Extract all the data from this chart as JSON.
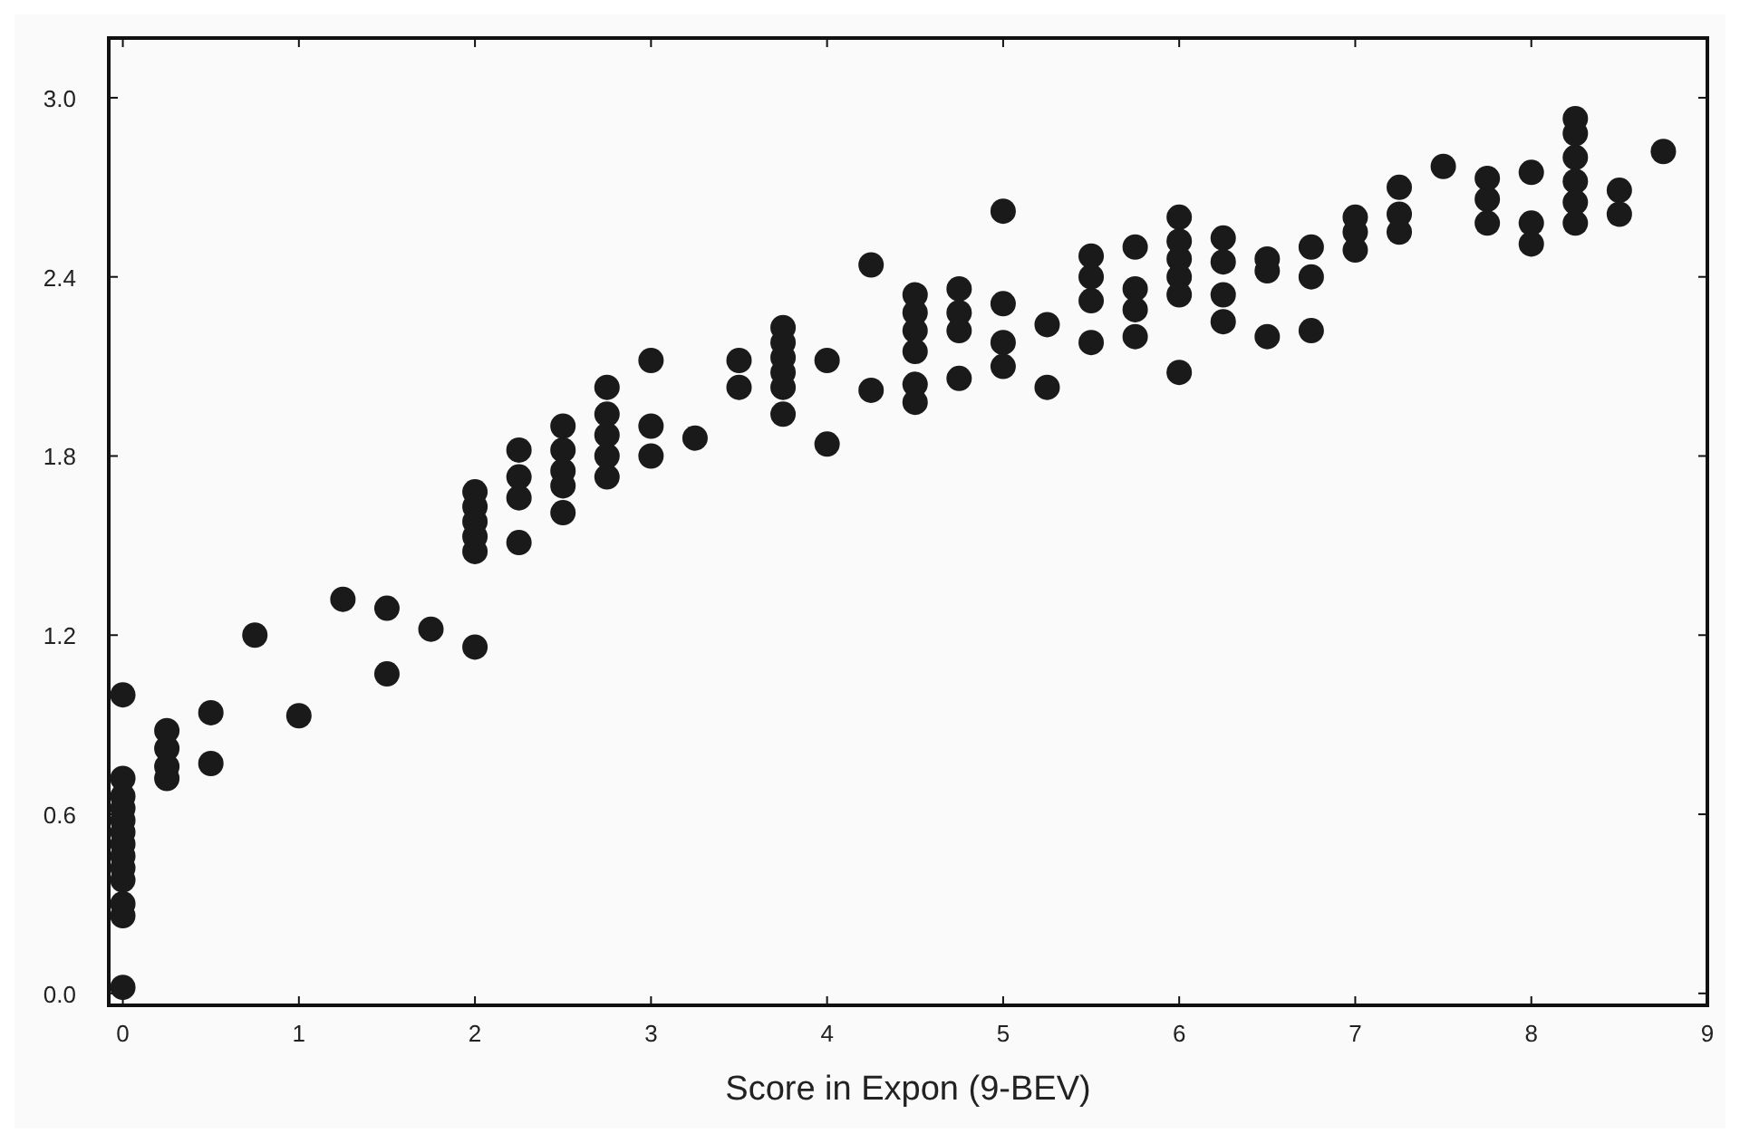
{
  "chart_data": {
    "type": "scatter",
    "xlabel": "Score in Expon (9-BEV)",
    "xlim": [
      -0.08,
      9
    ],
    "ylim": [
      -0.04,
      3.2
    ],
    "xticks": [
      0,
      1,
      2,
      3,
      4,
      5,
      6,
      7,
      8,
      9
    ],
    "yticks": [
      {
        "value": 0,
        "label": "0.0"
      },
      {
        "value": 0.6,
        "label": "0.6"
      },
      {
        "value": 1.2,
        "label": "1.2"
      },
      {
        "value": 1.8,
        "label": "1.8"
      },
      {
        "value": 2.4,
        "label": "2.4"
      },
      {
        "value": 3.0,
        "label": "3.0"
      }
    ],
    "grid": false,
    "marker": "circle",
    "series": [
      {
        "color": "#1a1a1a",
        "x": [
          0,
          0,
          0,
          0,
          0,
          0,
          0,
          0,
          0,
          0,
          0,
          0,
          0,
          0.25,
          0.25,
          0.25,
          0.25,
          0.5,
          0.5,
          0.75,
          1,
          1.25,
          1.5,
          1.5,
          1.75,
          2,
          2,
          2,
          2,
          2,
          2,
          2.25,
          2.25,
          2.25,
          2.25,
          2.5,
          2.5,
          2.5,
          2.5,
          2.5,
          2.75,
          2.75,
          2.75,
          2.75,
          2.75,
          3,
          3,
          3,
          3.25,
          3.5,
          3.5,
          3.75,
          3.75,
          3.75,
          3.75,
          3.75,
          3.75,
          4,
          4,
          4.25,
          4.25,
          4.5,
          4.5,
          4.5,
          4.5,
          4.5,
          4.5,
          4.75,
          4.75,
          4.75,
          4.75,
          5,
          5,
          5,
          5,
          5.25,
          5.25,
          5.5,
          5.5,
          5.5,
          5.5,
          5.75,
          5.75,
          5.75,
          5.75,
          6,
          6,
          6,
          6,
          6,
          6,
          6.25,
          6.25,
          6.25,
          6.25,
          6.5,
          6.5,
          6.5,
          6.75,
          6.75,
          6.75,
          7,
          7,
          7,
          7.25,
          7.25,
          7.25,
          7.5,
          7.75,
          7.75,
          7.75,
          8,
          8,
          8,
          8.25,
          8.25,
          8.25,
          8.25,
          8.25,
          8.25,
          8.5,
          8.5,
          8.75
        ],
        "values": [
          1.0,
          0.72,
          0.66,
          0.62,
          0.58,
          0.54,
          0.5,
          0.46,
          0.42,
          0.38,
          0.3,
          0.26,
          0.02,
          0.88,
          0.82,
          0.76,
          0.72,
          0.94,
          0.77,
          1.2,
          0.93,
          1.32,
          1.29,
          1.07,
          1.22,
          1.16,
          1.68,
          1.63,
          1.58,
          1.53,
          1.48,
          1.82,
          1.73,
          1.66,
          1.51,
          1.9,
          1.82,
          1.75,
          1.7,
          1.61,
          2.03,
          1.94,
          1.87,
          1.8,
          1.73,
          2.12,
          1.9,
          1.8,
          1.86,
          2.12,
          2.03,
          2.23,
          2.18,
          2.13,
          2.08,
          2.03,
          1.94,
          2.12,
          1.84,
          2.44,
          2.02,
          2.34,
          2.28,
          2.22,
          2.15,
          2.04,
          1.98,
          2.36,
          2.28,
          2.22,
          2.06,
          2.62,
          2.31,
          2.18,
          2.1,
          2.24,
          2.03,
          2.47,
          2.4,
          2.32,
          2.18,
          2.5,
          2.36,
          2.29,
          2.2,
          2.6,
          2.52,
          2.46,
          2.4,
          2.34,
          2.08,
          2.53,
          2.45,
          2.34,
          2.25,
          2.46,
          2.42,
          2.2,
          2.5,
          2.4,
          2.22,
          2.6,
          2.55,
          2.49,
          2.7,
          2.61,
          2.55,
          2.77,
          2.73,
          2.66,
          2.58,
          2.75,
          2.58,
          2.51,
          2.93,
          2.88,
          2.8,
          2.72,
          2.65,
          2.58,
          2.69,
          2.61,
          2.82
        ]
      }
    ]
  }
}
